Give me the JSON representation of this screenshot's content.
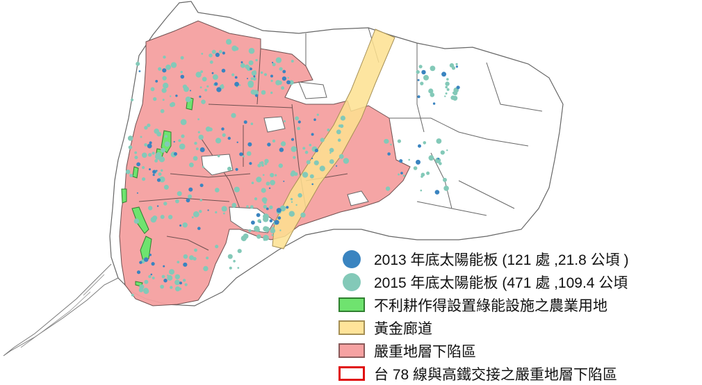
{
  "legend": {
    "items": [
      {
        "label": "2013 年底太陽能板  (121 處 ,21.8 公頃 )",
        "color": "#3a84c0",
        "symbol": "circle"
      },
      {
        "label": "2015 年底太陽能板  (471 處 ,109.4 公頃",
        "color": "#83c9b8",
        "symbol": "circle"
      },
      {
        "label": "不利耕作得設置綠能設施之農業用地",
        "color": "#6fe36f",
        "stroke": "#2f7f2f",
        "symbol": "box"
      },
      {
        "label": "黃金廊道",
        "color": "#ffe49a",
        "stroke": "#a58f55",
        "symbol": "box"
      },
      {
        "label": "嚴重地層下陷區",
        "color": "#f6a2a2",
        "stroke": "#8a5a5a",
        "symbol": "box"
      },
      {
        "label": "台 78 線與高鐵交接之嚴重地層下陷區",
        "color": "#ffffff",
        "stroke": "#e01010",
        "symbol": "box-outline"
      }
    ]
  },
  "colors": {
    "subsidence": "#f4a0a0",
    "corridor": "#fde18f",
    "agri": "#6fe36f",
    "solar2013": "#3a84c0",
    "solar2015": "#83c9b8",
    "boundary": "#555555"
  }
}
